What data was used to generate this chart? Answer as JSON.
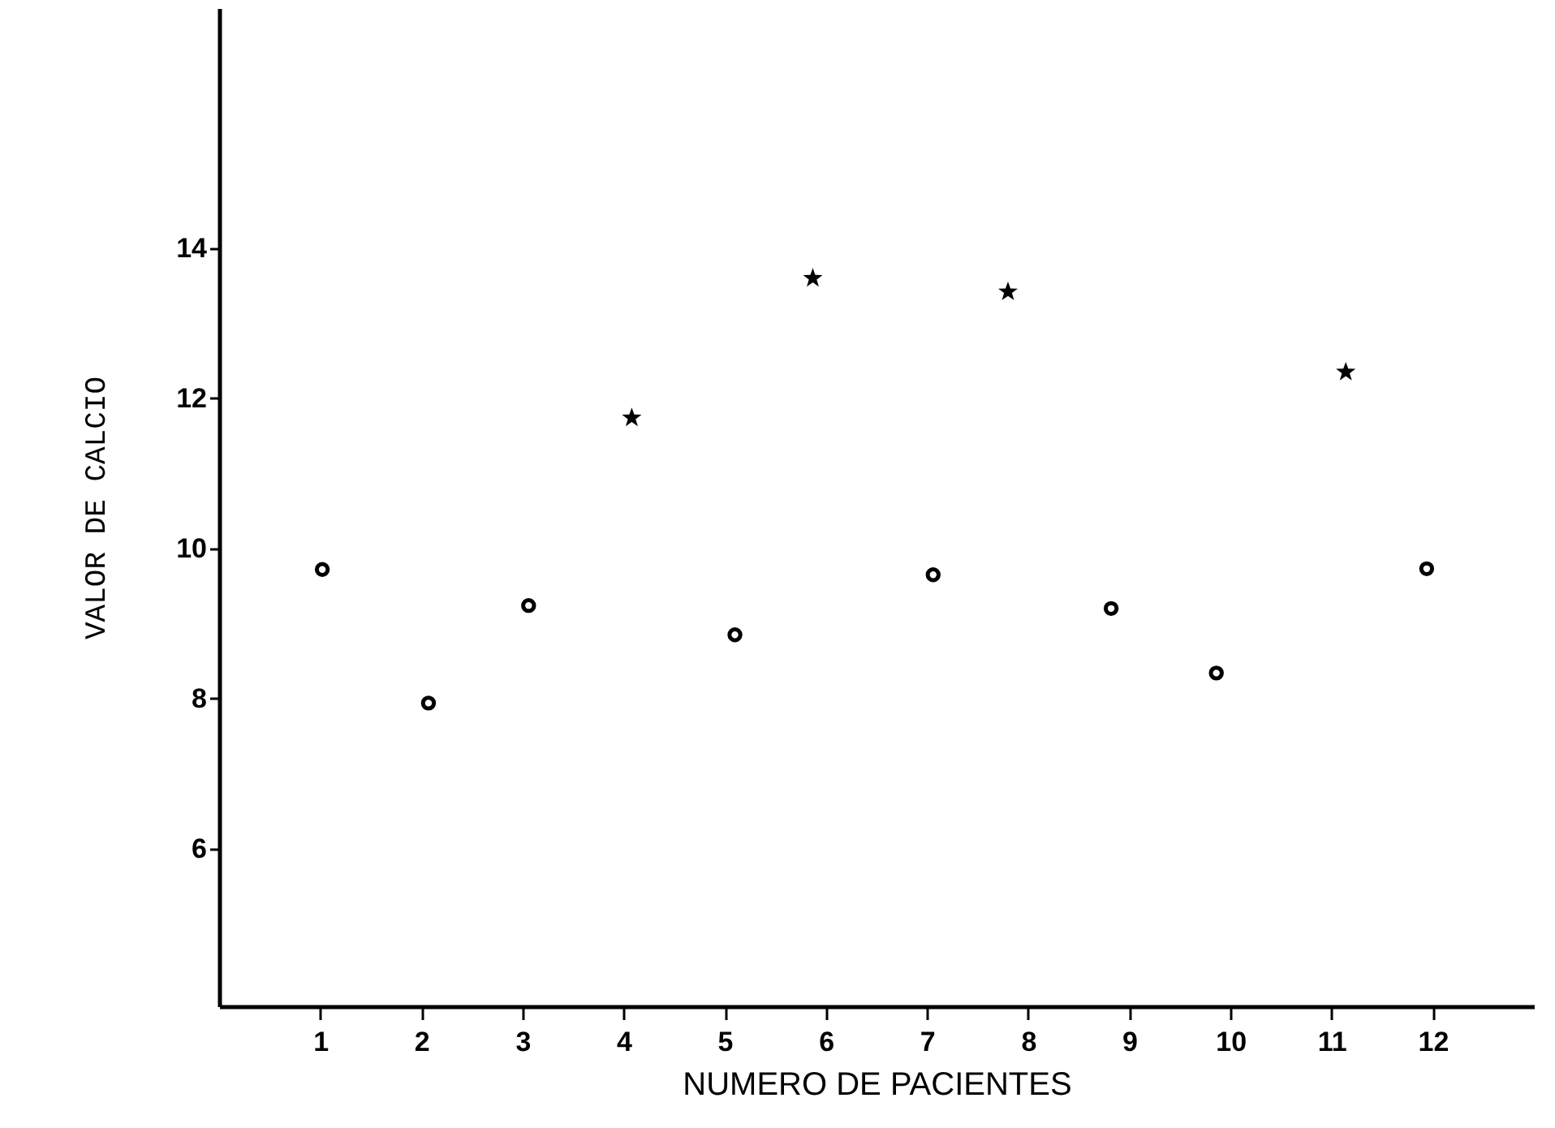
{
  "chart_data": {
    "type": "scatter",
    "xlabel": "NUMERO DE PACIENTES",
    "ylabel": "VALOR DE CALCIO",
    "xlim": [
      0,
      13
    ],
    "xticks": [
      1,
      2,
      3,
      4,
      5,
      6,
      7,
      8,
      9,
      10,
      11,
      12
    ],
    "ylim": [
      3.9,
      17.2
    ],
    "yticks": [
      6,
      8,
      10,
      12,
      14
    ],
    "series": [
      {
        "color": "#000000",
        "marker": "circle",
        "x": [
          1.02,
          2.07,
          3.06,
          5.1,
          7.06,
          8.82,
          9.86,
          11.94
        ],
        "values": [
          9.72,
          7.94,
          9.24,
          8.85,
          9.65,
          9.2,
          8.34,
          9.73
        ]
      },
      {
        "color": "#000000",
        "marker": "star",
        "x": [
          4.08,
          5.87,
          7.8,
          11.14
        ],
        "values": [
          11.74,
          13.6,
          13.42,
          12.35
        ]
      }
    ]
  }
}
